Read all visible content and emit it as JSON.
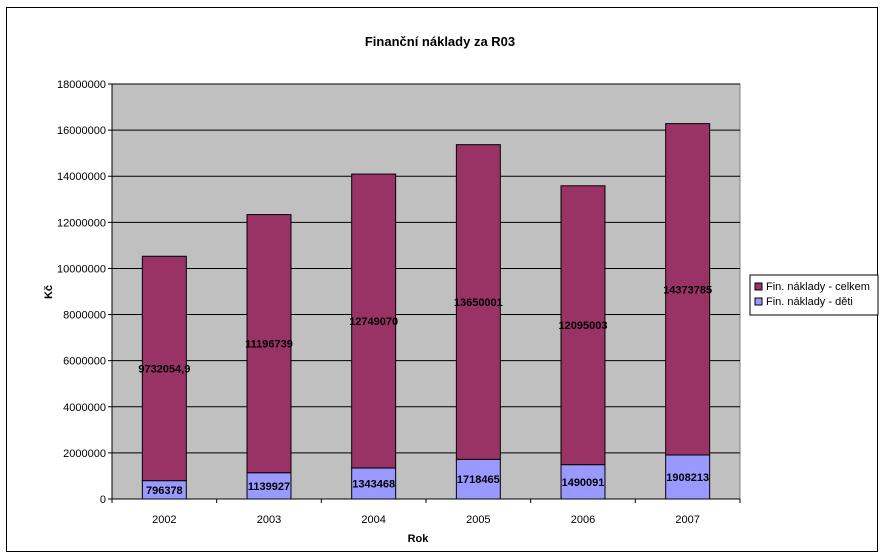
{
  "chart_data": {
    "type": "bar",
    "stacked": true,
    "title": "Finanční náklady za R03",
    "xlabel": "Rok",
    "ylabel": "Kč",
    "categories": [
      "2002",
      "2003",
      "2004",
      "2005",
      "2006",
      "2007"
    ],
    "series": [
      {
        "name": "Fin. náklady - děti",
        "values": [
          796378,
          1139927,
          1343468,
          1718465,
          1490091,
          1908213
        ],
        "labels": [
          "796378",
          "1139927",
          "1343468",
          "1718465",
          "1490091",
          "1908213"
        ],
        "color": "#9999ff"
      },
      {
        "name": "Fin. náklady - celkem",
        "values": [
          9732054.9,
          11196739,
          12749070,
          13650001,
          12095003,
          14373785
        ],
        "labels": [
          "9732054,9",
          "11196739",
          "12749070",
          "13650001",
          "12095003",
          "14373785"
        ],
        "color": "#993366"
      }
    ],
    "ylim": [
      0,
      18000000
    ],
    "yticks": [
      "0",
      "2000000",
      "4000000",
      "6000000",
      "8000000",
      "10000000",
      "12000000",
      "14000000",
      "16000000",
      "18000000"
    ],
    "grid": true,
    "plot_background": "#c0c0c0",
    "legend_position": "right"
  }
}
